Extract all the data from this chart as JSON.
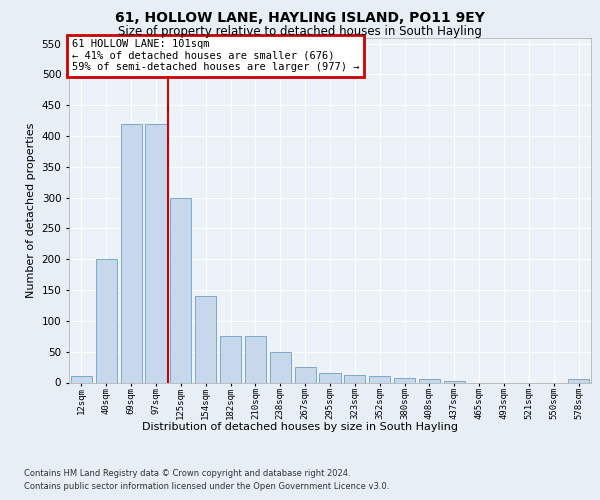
{
  "title": "61, HOLLOW LANE, HAYLING ISLAND, PO11 9EY",
  "subtitle": "Size of property relative to detached houses in South Hayling",
  "xlabel": "Distribution of detached houses by size in South Hayling",
  "ylabel": "Number of detached properties",
  "footnote1": "Contains HM Land Registry data © Crown copyright and database right 2024.",
  "footnote2": "Contains public sector information licensed under the Open Government Licence v3.0.",
  "bar_labels": [
    "12sqm",
    "40sqm",
    "69sqm",
    "97sqm",
    "125sqm",
    "154sqm",
    "182sqm",
    "210sqm",
    "238sqm",
    "267sqm",
    "295sqm",
    "323sqm",
    "352sqm",
    "380sqm",
    "408sqm",
    "437sqm",
    "465sqm",
    "493sqm",
    "521sqm",
    "550sqm",
    "578sqm"
  ],
  "bar_values": [
    10,
    200,
    420,
    420,
    300,
    140,
    75,
    75,
    50,
    25,
    15,
    12,
    10,
    8,
    5,
    2,
    0,
    0,
    0,
    0,
    5
  ],
  "bar_color": "#c8d8ec",
  "bar_edge_color": "#7aaac8",
  "vline_x": 3.5,
  "vline_color": "#cc0000",
  "annotation_title": "61 HOLLOW LANE: 101sqm",
  "annotation_line1": "← 41% of detached houses are smaller (676)",
  "annotation_line2": "59% of semi-detached houses are larger (977) →",
  "ann_box_edge_color": "#cc0000",
  "ylim": [
    0,
    560
  ],
  "yticks": [
    0,
    50,
    100,
    150,
    200,
    250,
    300,
    350,
    400,
    450,
    500,
    550
  ],
  "bg_color": "#e8eef5",
  "plot_bg_color": "#edf2f8",
  "grid_color": "#ffffff",
  "title_fontsize": 10,
  "subtitle_fontsize": 8.5,
  "ylabel_fontsize": 8,
  "xlabel_fontsize": 8,
  "ytick_fontsize": 7.5,
  "xtick_fontsize": 6.5,
  "ann_fontsize": 7.5,
  "footnote_fontsize": 6.0
}
